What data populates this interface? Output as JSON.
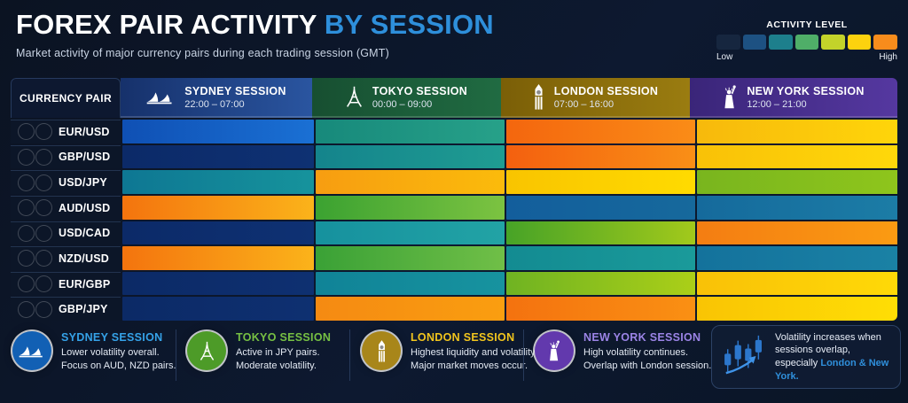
{
  "header": {
    "title_main": "FOREX PAIR ACTIVITY",
    "title_accent": "BY SESSION",
    "subtitle": "Market activity of major currency pairs during each trading session (GMT)",
    "accent_color": "#2e8fdb",
    "activity_legend": {
      "label": "ACTIVITY LEVEL",
      "low": "Low",
      "high": "High",
      "colors": [
        "#16263f",
        "#1d5182",
        "#1d7f8c",
        "#4fae68",
        "#c3d32a",
        "#fdd20e",
        "#f78c1c"
      ]
    }
  },
  "table": {
    "pair_header": "CURRENCY PAIR",
    "sessions": [
      {
        "name": "SYDNEY SESSION",
        "time": "22:00 – 07:00",
        "icon": "sydney-opera-house-icon",
        "bg": [
          "#16316b",
          "#2a55a0"
        ]
      },
      {
        "name": "TOKYO SESSION",
        "time": "00:00 – 09:00",
        "icon": "tokyo-tower-icon",
        "bg": [
          "#174f31",
          "#206b42"
        ]
      },
      {
        "name": "LONDON SESSION",
        "time": "07:00 – 16:00",
        "icon": "big-ben-icon",
        "bg": [
          "#7b5f07",
          "#9a7c10"
        ]
      },
      {
        "name": "NEW YORK SESSION",
        "time": "12:00 – 21:00",
        "icon": "statue-of-liberty-icon",
        "bg": [
          "#3a2579",
          "#5538a0"
        ]
      }
    ],
    "rows": [
      {
        "pair": "EUR/USD",
        "flags": [
          "eu",
          "us"
        ],
        "activity": [
          [
            "#0f50b4",
            "#1a70d4"
          ],
          [
            "#17897b",
            "#27a189"
          ],
          [
            "#f4660e",
            "#fa8c17"
          ],
          [
            "#f7b90c",
            "#ffd60a"
          ]
        ]
      },
      {
        "pair": "GBP/USD",
        "flags": [
          "gb",
          "us"
        ],
        "activity": [
          [
            "#0c2a68",
            "#0e3173"
          ],
          [
            "#14848c",
            "#1f9c92"
          ],
          [
            "#f4600f",
            "#f98f16"
          ],
          [
            "#f9c107",
            "#ffd90a"
          ]
        ]
      },
      {
        "pair": "USD/JPY",
        "flags": [
          "us",
          "jp"
        ],
        "activity": [
          [
            "#0e7793",
            "#16939c"
          ],
          [
            "#f79d11",
            "#fbbb0b"
          ],
          [
            "#f9c400",
            "#ffdb00"
          ],
          [
            "#79b51e",
            "#8fc61c"
          ]
        ]
      },
      {
        "pair": "AUD/USD",
        "flags": [
          "au",
          "us"
        ],
        "activity": [
          [
            "#f4740e",
            "#fbb31a"
          ],
          [
            "#3ba231",
            "#7cc341"
          ],
          [
            "#135e9c",
            "#16699c"
          ],
          [
            "#156a9c",
            "#1c7da6"
          ]
        ]
      },
      {
        "pair": "USD/CAD",
        "flags": [
          "us",
          "ca"
        ],
        "activity": [
          [
            "#0c2a68",
            "#0e3173"
          ],
          [
            "#16919e",
            "#22a3a5"
          ],
          [
            "#47a327",
            "#a2c91b"
          ],
          [
            "#f47d12",
            "#fb9c12"
          ]
        ]
      },
      {
        "pair": "NZD/USD",
        "flags": [
          "nz",
          "us"
        ],
        "activity": [
          [
            "#f4740e",
            "#fbb31a"
          ],
          [
            "#3aa136",
            "#70bf47"
          ],
          [
            "#138b92",
            "#1a9a9a"
          ],
          [
            "#14729c",
            "#1a82a5"
          ]
        ]
      },
      {
        "pair": "EUR/GBP",
        "flags": [
          "eu",
          "gb"
        ],
        "activity": [
          [
            "#0c2a66",
            "#0e3071"
          ],
          [
            "#108397",
            "#17939f"
          ],
          [
            "#6fb322",
            "#abcf18"
          ],
          [
            "#f9c107",
            "#ffda07"
          ]
        ]
      },
      {
        "pair": "GBP/JPY",
        "flags": [
          "gb",
          "jp"
        ],
        "activity": [
          [
            "#0c2a66",
            "#0e3071"
          ],
          [
            "#f58a12",
            "#fa9e10"
          ],
          [
            "#f4720f",
            "#fa9013"
          ],
          [
            "#f9c404",
            "#ffdf05"
          ]
        ]
      }
    ]
  },
  "legend": {
    "items": [
      {
        "name": "SYDNEY SESSION",
        "color": "#35a2e8",
        "circle": "#1260b4",
        "lines": [
          "Lower volatility overall.",
          "Focus on AUD, NZD pairs."
        ]
      },
      {
        "name": "TOKYO SESSION",
        "color": "#76c043",
        "circle": "#4d9b28",
        "lines": [
          "Active in JPY pairs.",
          "Moderate volatility."
        ]
      },
      {
        "name": "LONDON SESSION",
        "color": "#f2c51d",
        "circle": "#a8861a",
        "lines": [
          "Highest liquidity and volatility.",
          "Major market moves occur."
        ]
      },
      {
        "name": "NEW YORK SESSION",
        "color": "#9b84e6",
        "circle": "#6239ad",
        "lines": [
          "High volatility continues.",
          "Overlap with London session."
        ]
      }
    ]
  },
  "note": {
    "text_plain": "Volatility increases when sessions overlap, especially ",
    "text_highlight": "London & New York.",
    "highlight_color": "#2f8fdb"
  },
  "chart_data": {
    "type": "heatmap",
    "title": "FOREX PAIR ACTIVITY BY SESSION",
    "subtitle": "Market activity of major currency pairs during each trading session (GMT)",
    "rows": [
      "EUR/USD",
      "GBP/USD",
      "USD/JPY",
      "AUD/USD",
      "USD/CAD",
      "NZD/USD",
      "EUR/GBP",
      "GBP/JPY"
    ],
    "columns": [
      "Sydney Session 22:00 – 07:00",
      "Tokyo Session 00:00 – 09:00",
      "London Session 07:00 – 16:00",
      "New York Session 12:00 – 21:00"
    ],
    "scale": {
      "levels": 7,
      "min_label": "Low",
      "max_label": "High",
      "level_colors": [
        "#16263f",
        "#1d5182",
        "#1d7f8c",
        "#4fae68",
        "#c3d32a",
        "#fdd20e",
        "#f78c1c"
      ]
    },
    "values": [
      [
        2,
        3,
        7,
        6
      ],
      [
        1,
        3,
        7,
        6
      ],
      [
        3,
        6,
        6,
        5
      ],
      [
        7,
        4,
        2,
        2
      ],
      [
        1,
        3,
        5,
        7
      ],
      [
        7,
        4,
        3,
        3
      ],
      [
        1,
        3,
        5,
        6
      ],
      [
        1,
        7,
        7,
        6
      ]
    ],
    "legend_position": "top-right",
    "grid": false
  }
}
